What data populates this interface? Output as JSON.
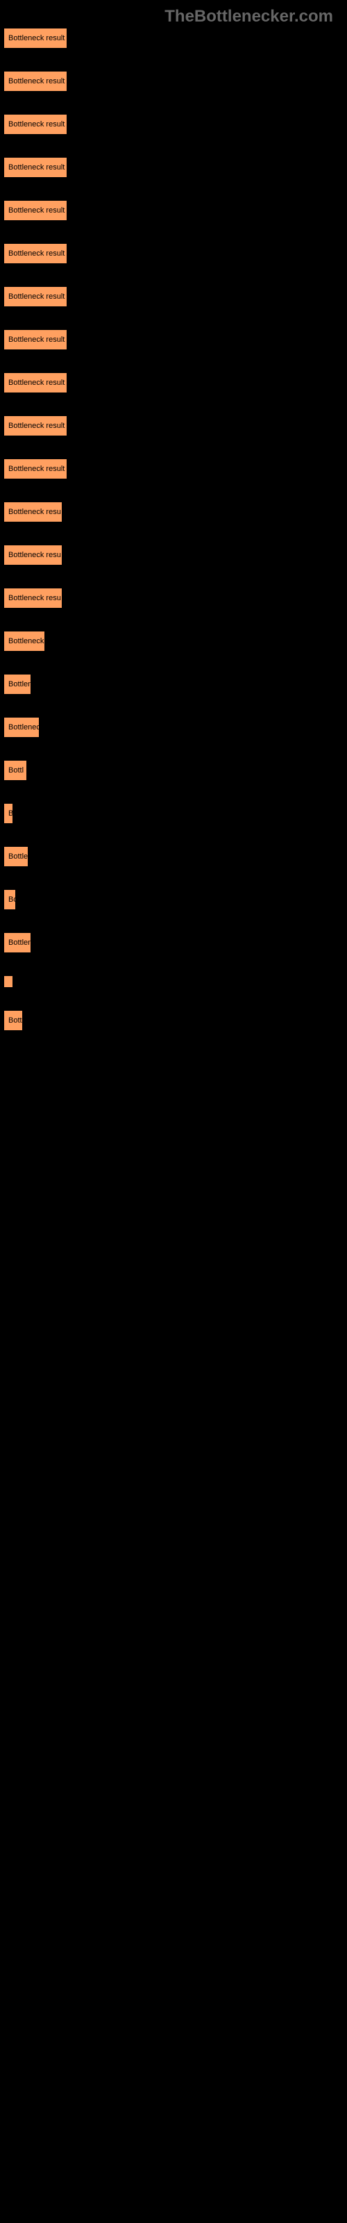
{
  "watermark": "TheBottlenecker.com",
  "chart": {
    "type": "bar",
    "bar_color": "#ffa060",
    "bar_border_color": "#000000",
    "text_color": "#000000",
    "background_color": "#000000",
    "font_size": 11,
    "bars": [
      {
        "label": "Bottleneck result",
        "width": 92
      },
      {
        "label": "Bottleneck result",
        "width": 92
      },
      {
        "label": "Bottleneck result",
        "width": 92
      },
      {
        "label": "Bottleneck result",
        "width": 92
      },
      {
        "label": "Bottleneck result",
        "width": 92
      },
      {
        "label": "Bottleneck result",
        "width": 92
      },
      {
        "label": "Bottleneck result",
        "width": 92
      },
      {
        "label": "Bottleneck result",
        "width": 92
      },
      {
        "label": "Bottleneck result",
        "width": 92
      },
      {
        "label": "Bottleneck result",
        "width": 92
      },
      {
        "label": "Bottleneck result",
        "width": 92
      },
      {
        "label": "Bottleneck resu",
        "width": 85
      },
      {
        "label": "Bottleneck resu",
        "width": 85
      },
      {
        "label": "Bottleneck resu",
        "width": 85
      },
      {
        "label": "Bottleneck",
        "width": 60
      },
      {
        "label": "Bottlen",
        "width": 40
      },
      {
        "label": "Bottlenec",
        "width": 52
      },
      {
        "label": "Bottl",
        "width": 34
      },
      {
        "label": "B",
        "width": 10
      },
      {
        "label": "Bottle",
        "width": 36
      },
      {
        "label": "Bo",
        "width": 18
      },
      {
        "label": "Bottlen",
        "width": 40
      },
      {
        "label": "",
        "width": 3
      },
      {
        "label": "Bott",
        "width": 28
      }
    ]
  }
}
